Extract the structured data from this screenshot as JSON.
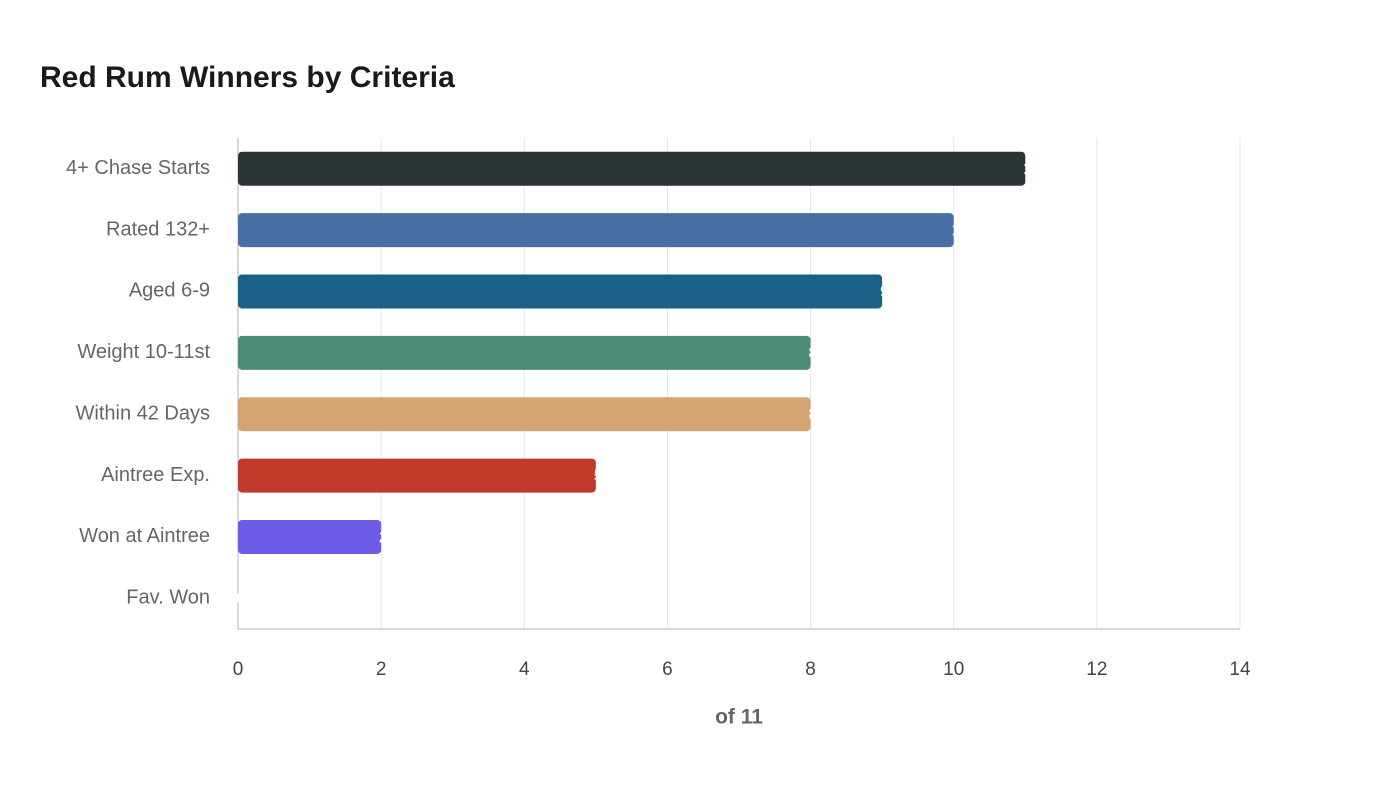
{
  "chart_data": {
    "type": "barh",
    "title": "Red Rum Winners by Criteria",
    "categories": [
      "4+ Chase Starts",
      "Rated 132+",
      "Aged 6-9",
      "Weight 10-11st",
      "Within 42 Days",
      "Aintree Exp.",
      "Won at Aintree",
      "Fav. Won"
    ],
    "values": [
      11,
      10,
      9,
      8,
      8,
      5,
      2,
      0
    ],
    "colors": [
      "#2d3436",
      "#4a6fa5",
      "#1a6188",
      "#4e8c7a",
      "#d4a373",
      "#c0392b",
      "#6c5ce7",
      "#e17055"
    ],
    "x_label": "of 11",
    "xlim": [
      0,
      14
    ],
    "xticks": [
      0,
      2,
      4,
      6,
      8,
      10,
      12,
      14
    ],
    "grid": true
  }
}
